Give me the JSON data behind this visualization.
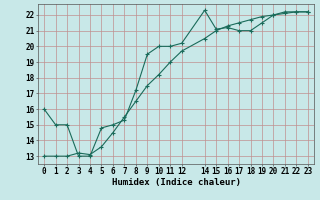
{
  "xlabel": "Humidex (Indice chaleur)",
  "background_color": "#c8e8e8",
  "grid_color": "#c09090",
  "line_color": "#1a6b5a",
  "xlim": [
    -0.5,
    23.5
  ],
  "ylim": [
    12.5,
    22.7
  ],
  "xticks": [
    0,
    1,
    2,
    3,
    4,
    5,
    6,
    7,
    8,
    9,
    10,
    11,
    12,
    14,
    15,
    16,
    17,
    18,
    19,
    20,
    21,
    22,
    23
  ],
  "yticks": [
    13,
    14,
    15,
    16,
    17,
    18,
    19,
    20,
    21,
    22
  ],
  "line1_x": [
    0,
    1,
    2,
    3,
    4,
    5,
    6,
    7,
    8,
    9,
    10,
    11,
    12,
    14,
    15,
    16,
    17,
    18,
    19,
    20,
    21,
    22,
    23
  ],
  "line1_y": [
    16,
    15,
    15,
    13,
    13,
    14.8,
    15,
    15.3,
    17.2,
    19.5,
    20,
    20,
    20.2,
    22.3,
    21.1,
    21.2,
    21,
    21,
    21.5,
    22,
    22.2,
    22.2,
    22.2
  ],
  "line2_x": [
    0,
    1,
    2,
    3,
    4,
    5,
    6,
    7,
    8,
    9,
    10,
    11,
    12,
    14,
    15,
    16,
    17,
    18,
    19,
    20,
    21,
    22,
    23
  ],
  "line2_y": [
    13,
    13,
    13,
    13.2,
    13.1,
    13.6,
    14.5,
    15.5,
    16.5,
    17.5,
    18.2,
    19.0,
    19.7,
    20.5,
    21.0,
    21.3,
    21.5,
    21.7,
    21.9,
    22.0,
    22.1,
    22.2,
    22.2
  ],
  "tick_fontsize": 5.5,
  "xlabel_fontsize": 6.5
}
